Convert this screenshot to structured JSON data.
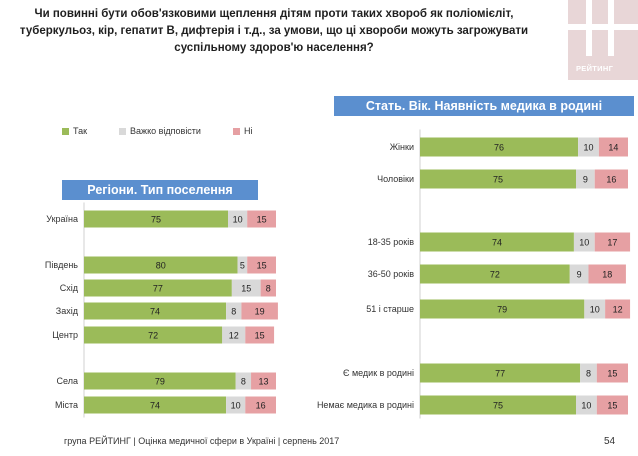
{
  "title": "Чи повинні бути обов'язковими щеплення дітям проти таких хвороб як поліомієліт, туберкульоз, кір, гепатит В, дифтерія і т.д., за умови, що ці хвороби можуть загрожувати суспільному здоров'ю населення?",
  "title_lines": [
    "Чи повинні бути обов'язковими щеплення дітям проти таких хвороб як поліомієліт,",
    "туберкульоз, кір, гепатит В, дифтерія і т.д., за умови, що ці хвороби можуть загрожувати",
    "суспільному здоров'ю населення?"
  ],
  "logo_text": "РЕЙТИНГ",
  "footer": "група РЕЙТИНГ | Оцінка медичної сфери в Україні | серпень 2017",
  "page_number": "54",
  "colors": {
    "yes": "#9bbb59",
    "hard": "#d9d9d9",
    "no": "#e6a0a3",
    "banner": "#5b8fcf",
    "logo": "#e8d6d7"
  },
  "chart_data": [
    {
      "type": "bar",
      "orientation": "horizontal",
      "stacked": true,
      "title": "Регіони. Тип поселення",
      "categories": [
        "Україна",
        "Південь",
        "Схід",
        "Захід",
        "Центр",
        "Села",
        "Міста"
      ],
      "series": [
        {
          "name": "Так",
          "values": [
            75,
            80,
            77,
            74,
            72,
            79,
            74
          ]
        },
        {
          "name": "Важко відповісти",
          "values": [
            10,
            5,
            15,
            8,
            12,
            8,
            10
          ]
        },
        {
          "name": "Ні",
          "values": [
            15,
            15,
            8,
            19,
            15,
            13,
            16
          ]
        }
      ],
      "xlim": [
        0,
        100
      ],
      "legend": "top"
    },
    {
      "type": "bar",
      "orientation": "horizontal",
      "stacked": true,
      "title": "Стать. Вік. Наявність медика в родині",
      "categories": [
        "Жінки",
        "Чоловіки",
        "18-35 років",
        "36-50 років",
        "51 і старше",
        "Є медик в родині",
        "Немає медика в родині"
      ],
      "series": [
        {
          "name": "Так",
          "values": [
            76,
            75,
            74,
            72,
            79,
            77,
            75
          ]
        },
        {
          "name": "Важко відповісти",
          "values": [
            10,
            9,
            10,
            9,
            10,
            8,
            10
          ]
        },
        {
          "name": "Ні",
          "values": [
            14,
            16,
            17,
            18,
            12,
            15,
            15
          ]
        }
      ],
      "xlim": [
        0,
        100
      ]
    }
  ]
}
